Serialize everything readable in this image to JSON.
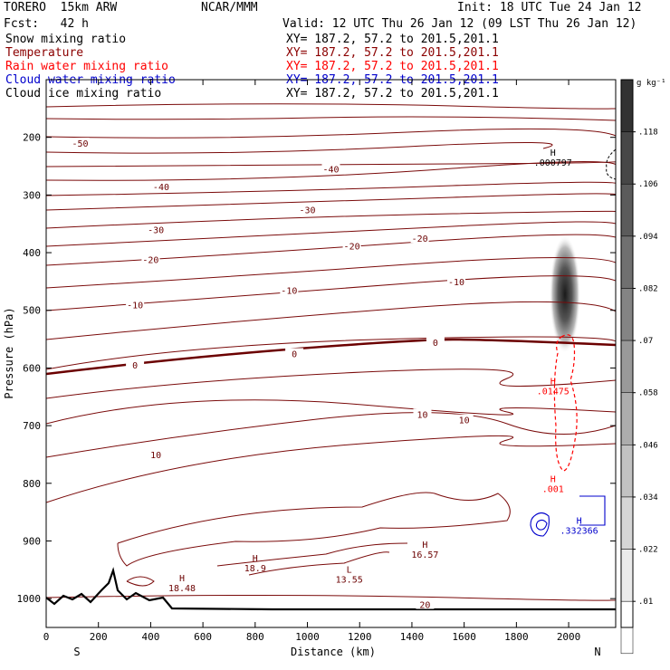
{
  "header": {
    "model": "TORERO  15km ARW",
    "org": "NCAR/MMM",
    "init": "Init: 18 UTC Tue 24 Jan 12",
    "fcst": "Fcst:   42 h",
    "valid": "Valid: 12 UTC Thu 26 Jan 12 (09 LST Thu 26 Jan 12)",
    "xy": "XY= 187.2, 57.2 to 201.5,201.1"
  },
  "fields": [
    {
      "name": "Snow mixing ratio",
      "color": "#000000"
    },
    {
      "name": "Temperature",
      "color": "#8b0000"
    },
    {
      "name": "Rain water mixing ratio",
      "color": "#ff0000"
    },
    {
      "name": "Cloud water mixing ratio",
      "color": "#0000cc"
    },
    {
      "name": "Cloud ice mixing ratio",
      "color": "#000000"
    }
  ],
  "chart_data": {
    "type": "heatmap",
    "subtype": "vertical cross-section (shaded snow mixing ratio with contour overlays)",
    "xlabel": "Distance (km)",
    "ylabel": "Pressure (hPa)",
    "xlim": [
      0,
      2180
    ],
    "ylim": [
      1050,
      100
    ],
    "x_ticks": [
      0,
      200,
      400,
      600,
      800,
      1000,
      1200,
      1400,
      1600,
      1800,
      2000
    ],
    "y_ticks": [
      200,
      300,
      400,
      500,
      600,
      700,
      800,
      900,
      1000
    ],
    "x_end_labels": {
      "left": "S",
      "right": "N"
    },
    "colorbar": {
      "unit": "g kg⁻¹",
      "ticks": [
        ".01",
        ".022",
        ".034",
        ".046",
        ".058",
        ".07",
        ".082",
        ".094",
        ".106",
        ".118"
      ]
    },
    "temperature_contour_labels": [
      {
        "x": 130,
        "p": 210,
        "label": "-50"
      },
      {
        "x": 1090,
        "p": 255,
        "label": "-40"
      },
      {
        "x": 440,
        "p": 285,
        "label": "-40"
      },
      {
        "x": 1000,
        "p": 325,
        "label": "-30"
      },
      {
        "x": 420,
        "p": 360,
        "label": "-30"
      },
      {
        "x": 1170,
        "p": 388,
        "label": "-20"
      },
      {
        "x": 1430,
        "p": 375,
        "label": "-20"
      },
      {
        "x": 400,
        "p": 412,
        "label": "-20"
      },
      {
        "x": 930,
        "p": 465,
        "label": "-10"
      },
      {
        "x": 1570,
        "p": 450,
        "label": "-10"
      },
      {
        "x": 340,
        "p": 490,
        "label": "-10"
      },
      {
        "x": 1490,
        "p": 555,
        "label": "0"
      },
      {
        "x": 950,
        "p": 575,
        "label": "0"
      },
      {
        "x": 340,
        "p": 595,
        "label": "0"
      },
      {
        "x": 1440,
        "p": 680,
        "label": "10"
      },
      {
        "x": 1600,
        "p": 690,
        "label": "10"
      },
      {
        "x": 420,
        "p": 750,
        "label": "10"
      },
      {
        "x": 1450,
        "p": 1010,
        "label": "20"
      }
    ],
    "extrema": [
      {
        "type": "H",
        "x": 1940,
        "p": 232,
        "value": ".000797",
        "field": "Snow mixing ratio"
      },
      {
        "type": "H",
        "x": 1940,
        "p": 628,
        "value": ".01475",
        "field": "Rain water mixing ratio"
      },
      {
        "type": "H",
        "x": 1940,
        "p": 798,
        "value": ".001",
        "field": "Rain water mixing ratio"
      },
      {
        "type": "H",
        "x": 2040,
        "p": 870,
        "value": ".332366",
        "field": "Cloud water mixing ratio"
      },
      {
        "type": "H",
        "x": 1450,
        "p": 912,
        "value": "16.57",
        "field": "Temperature"
      },
      {
        "type": "L",
        "x": 1160,
        "p": 955,
        "value": "13.55",
        "field": "Temperature"
      },
      {
        "type": "H",
        "x": 800,
        "p": 935,
        "value": "18.9",
        "field": "Temperature"
      },
      {
        "type": "H",
        "x": 520,
        "p": 970,
        "value": "18.48",
        "field": "Temperature"
      }
    ],
    "freezing_level_hPa_approx": {
      "x": [
        0,
        500,
        1000,
        1500,
        2000,
        2180
      ],
      "p": [
        612,
        588,
        565,
        552,
        558,
        558
      ]
    },
    "snow_max_approx": {
      "x": 1980,
      "p": 470,
      "value": 0.118
    },
    "terrain_surface_hPa": {
      "x": [
        0,
        100,
        200,
        250,
        300,
        400,
        500,
        800,
        1200,
        1600,
        2000,
        2180
      ],
      "p": [
        1000,
        1008,
        1000,
        950,
        1005,
        1000,
        1015,
        1015,
        1017,
        1017,
        1016,
        1016
      ]
    }
  }
}
